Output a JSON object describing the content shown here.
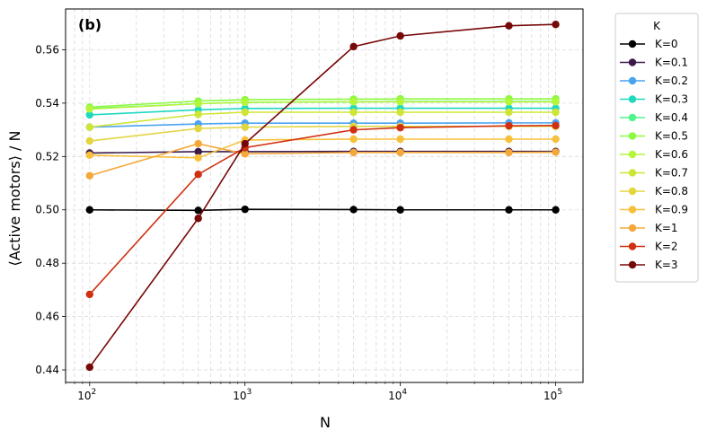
{
  "chart_data": {
    "type": "line",
    "panel_label": "(b)",
    "xlabel": "N",
    "ylabel": "⟨Active motors⟩ / N",
    "xscale": "log",
    "xlim": [
      70,
      150000
    ],
    "ylim": [
      0.4353,
      0.5753
    ],
    "x": [
      100,
      500,
      1000,
      5000,
      10000,
      50000,
      100000
    ],
    "x_ticks": [
      {
        "value": 100,
        "base": "10",
        "exp": "2"
      },
      {
        "value": 1000,
        "base": "10",
        "exp": "3"
      },
      {
        "value": 10000,
        "base": "10",
        "exp": "4"
      },
      {
        "value": 100000,
        "base": "10",
        "exp": "5"
      }
    ],
    "y_ticks": [
      0.44,
      0.46,
      0.48,
      0.5,
      0.52,
      0.54,
      0.56
    ],
    "y_tick_labels": [
      "0.44",
      "0.46",
      "0.48",
      "0.50",
      "0.52",
      "0.54",
      "0.56"
    ],
    "grid": true,
    "legend_title": "K",
    "legend_position": "outside-right",
    "series": [
      {
        "name": "K=0",
        "color": "#000000",
        "values": [
          0.5,
          0.4998,
          0.5002,
          0.5001,
          0.5,
          0.5,
          0.5
        ]
      },
      {
        "name": "K=0.1",
        "color": "#3a1a4a",
        "values": [
          0.5213,
          0.5218,
          0.5218,
          0.5219,
          0.5219,
          0.5219,
          0.5219
        ]
      },
      {
        "name": "K=0.2",
        "color": "#4aa3f0",
        "values": [
          0.531,
          0.5322,
          0.5325,
          0.5325,
          0.5325,
          0.5326,
          0.5326
        ]
      },
      {
        "name": "K=0.3",
        "color": "#1ed9c0",
        "values": [
          0.5356,
          0.5375,
          0.538,
          0.5381,
          0.5381,
          0.5381,
          0.5381
        ]
      },
      {
        "name": "K=0.4",
        "color": "#4df58a",
        "values": [
          0.538,
          0.5398,
          0.5403,
          0.5405,
          0.5406,
          0.5406,
          0.5406
        ]
      },
      {
        "name": "K=0.5",
        "color": "#8cfa40",
        "values": [
          0.5385,
          0.5408,
          0.5413,
          0.5415,
          0.5416,
          0.5416,
          0.5416
        ]
      },
      {
        "name": "K=0.6",
        "color": "#b5f53a",
        "values": [
          0.5378,
          0.5398,
          0.5403,
          0.5405,
          0.5405,
          0.5405,
          0.5405
        ]
      },
      {
        "name": "K=0.7",
        "color": "#cfe535",
        "values": [
          0.531,
          0.5358,
          0.5366,
          0.5366,
          0.5366,
          0.5366,
          0.5366
        ]
      },
      {
        "name": "K=0.8",
        "color": "#e2d540",
        "values": [
          0.5258,
          0.5305,
          0.531,
          0.5313,
          0.5313,
          0.5313,
          0.5313
        ]
      },
      {
        "name": "K=0.9",
        "color": "#f7c03a",
        "values": [
          0.5205,
          0.5195,
          0.5262,
          0.5265,
          0.5265,
          0.5265,
          0.5265
        ]
      },
      {
        "name": "K=1",
        "color": "#f5a83a",
        "values": [
          0.5128,
          0.5248,
          0.521,
          0.5215,
          0.5215,
          0.5215,
          0.5216
        ]
      },
      {
        "name": "K=2",
        "color": "#d03010",
        "values": [
          0.4683,
          0.5133,
          0.5233,
          0.53,
          0.5308,
          0.5315,
          0.5316
        ]
      },
      {
        "name": "K=3",
        "color": "#780808",
        "values": [
          0.441,
          0.4968,
          0.5248,
          0.5612,
          0.5652,
          0.569,
          0.5695
        ]
      }
    ]
  }
}
